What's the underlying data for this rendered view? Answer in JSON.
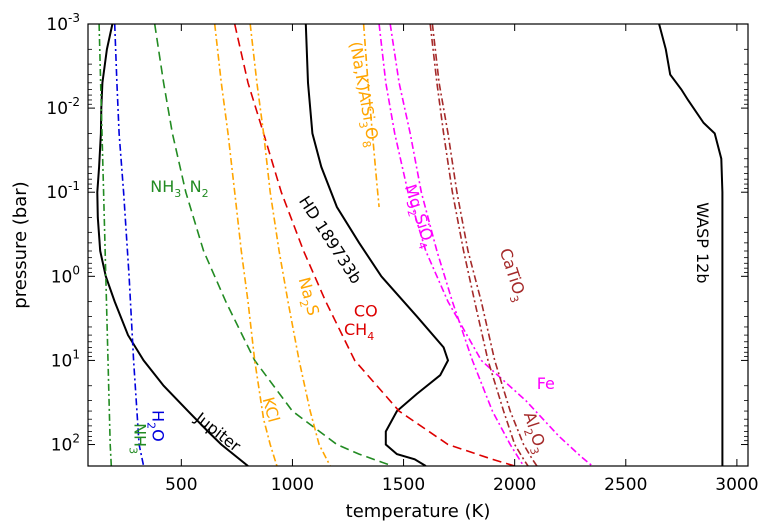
{
  "chart_data": {
    "type": "line",
    "title": "",
    "xlabel": "temperature (K)",
    "ylabel": "pressure (bar)",
    "xlim": [
      80,
      3050
    ],
    "ylim": [
      0.001,
      180
    ],
    "yscale": "log",
    "yaxis_inverted": true,
    "grid": false,
    "x_ticks": [
      {
        "value": 500,
        "label": "500"
      },
      {
        "value": 1000,
        "label": "1000"
      },
      {
        "value": 1500,
        "label": "1500"
      },
      {
        "value": 2000,
        "label": "2000"
      },
      {
        "value": 2500,
        "label": "2500"
      },
      {
        "value": 3000,
        "label": "3000"
      }
    ],
    "y_ticks": [
      {
        "value": 0.001,
        "base": "10",
        "exp": "-3"
      },
      {
        "value": 0.01,
        "base": "10",
        "exp": "-2"
      },
      {
        "value": 0.1,
        "base": "10",
        "exp": "-1"
      },
      {
        "value": 1,
        "base": "10",
        "exp": "0"
      },
      {
        "value": 10,
        "base": "10",
        "exp": "1"
      },
      {
        "value": 100,
        "base": "10",
        "exp": "2"
      }
    ],
    "series": [
      {
        "name": "Jupiter",
        "kind": "profile",
        "color": "#000000",
        "style": "solid",
        "points": [
          [
            190,
            0.001
          ],
          [
            165,
            0.002
          ],
          [
            145,
            0.005
          ],
          [
            140,
            0.01
          ],
          [
            138,
            0.02
          ],
          [
            130,
            0.05
          ],
          [
            122,
            0.1
          ],
          [
            124,
            0.2
          ],
          [
            135,
            0.5
          ],
          [
            160,
            1
          ],
          [
            200,
            2
          ],
          [
            260,
            5
          ],
          [
            330,
            10
          ],
          [
            420,
            20
          ],
          [
            530,
            40
          ],
          [
            620,
            70
          ],
          [
            680,
            100
          ],
          [
            800,
            180
          ]
        ]
      },
      {
        "name": "HD 189733b",
        "kind": "profile",
        "color": "#000000",
        "style": "solid",
        "points": [
          [
            1060,
            0.001
          ],
          [
            1070,
            0.005
          ],
          [
            1090,
            0.02
          ],
          [
            1130,
            0.05
          ],
          [
            1200,
            0.15
          ],
          [
            1300,
            0.4
          ],
          [
            1400,
            1
          ],
          [
            1560,
            3
          ],
          [
            1680,
            7
          ],
          [
            1700,
            10
          ],
          [
            1665,
            15
          ],
          [
            1560,
            25
          ],
          [
            1470,
            40
          ],
          [
            1420,
            70
          ],
          [
            1420,
            100
          ],
          [
            1470,
            130
          ],
          [
            1550,
            150
          ],
          [
            1600,
            180
          ]
        ]
      },
      {
        "name": "WASP 12b",
        "kind": "profile",
        "color": "#000000",
        "style": "solid",
        "points": [
          [
            2650,
            0.001
          ],
          [
            2680,
            0.002
          ],
          [
            2700,
            0.004
          ],
          [
            2750,
            0.006
          ],
          [
            2780,
            0.008
          ],
          [
            2850,
            0.015
          ],
          [
            2900,
            0.02
          ],
          [
            2930,
            0.04
          ],
          [
            2935,
            0.1
          ],
          [
            2935,
            1
          ],
          [
            2935,
            10
          ],
          [
            2935,
            180
          ]
        ]
      },
      {
        "name": "NH3",
        "kind": "condensation",
        "color": "#228b22",
        "style": "dashdot",
        "points": [
          [
            130,
            0.001
          ],
          [
            140,
            0.01
          ],
          [
            150,
            0.1
          ],
          [
            160,
            1
          ],
          [
            170,
            10
          ],
          [
            180,
            100
          ],
          [
            185,
            180
          ]
        ]
      },
      {
        "name": "H2O",
        "kind": "condensation",
        "color": "#0000dd",
        "style": "dashdot",
        "points": [
          [
            200,
            0.001
          ],
          [
            210,
            0.005
          ],
          [
            220,
            0.02
          ],
          [
            240,
            0.1
          ],
          [
            265,
            1
          ],
          [
            285,
            10
          ],
          [
            310,
            100
          ],
          [
            330,
            180
          ]
        ]
      },
      {
        "name": "NH3 N2",
        "kind": "chemistry",
        "color": "#228b22",
        "style": "dashed",
        "points": [
          [
            380,
            0.001
          ],
          [
            420,
            0.005
          ],
          [
            460,
            0.02
          ],
          [
            520,
            0.1
          ],
          [
            600,
            0.5
          ],
          [
            700,
            2
          ],
          [
            830,
            10
          ],
          [
            1000,
            40
          ],
          [
            1200,
            100
          ],
          [
            1300,
            130
          ],
          [
            1450,
            180
          ]
        ]
      },
      {
        "name": "CH4 CO",
        "kind": "chemistry",
        "color": "#dd0000",
        "style": "dashed",
        "points": [
          [
            740,
            0.001
          ],
          [
            800,
            0.005
          ],
          [
            870,
            0.02
          ],
          [
            950,
            0.1
          ],
          [
            1050,
            0.5
          ],
          [
            1150,
            2
          ],
          [
            1280,
            10
          ],
          [
            1480,
            40
          ],
          [
            1700,
            100
          ],
          [
            1900,
            150
          ],
          [
            2000,
            180
          ]
        ]
      },
      {
        "name": "KCl",
        "kind": "condensation",
        "color": "#ffa500",
        "style": "dashdot",
        "points": [
          [
            650,
            0.001
          ],
          [
            680,
            0.005
          ],
          [
            710,
            0.02
          ],
          [
            740,
            0.1
          ],
          [
            770,
            0.5
          ],
          [
            800,
            2
          ],
          [
            830,
            10
          ],
          [
            870,
            50
          ],
          [
            900,
            100
          ],
          [
            930,
            180
          ]
        ]
      },
      {
        "name": "Na2S",
        "kind": "condensation",
        "color": "#ffa500",
        "style": "dashdot",
        "points": [
          [
            810,
            0.001
          ],
          [
            840,
            0.005
          ],
          [
            870,
            0.02
          ],
          [
            900,
            0.1
          ],
          [
            940,
            0.5
          ],
          [
            980,
            2
          ],
          [
            1030,
            10
          ],
          [
            1080,
            40
          ],
          [
            1120,
            100
          ],
          [
            1170,
            180
          ]
        ]
      },
      {
        "name": "(Na,K)AlSi3O8",
        "kind": "condensation",
        "color": "#ffa500",
        "style": "dashdot",
        "points": [
          [
            1320,
            0.001
          ],
          [
            1340,
            0.005
          ],
          [
            1360,
            0.02
          ],
          [
            1380,
            0.08
          ],
          [
            1390,
            0.15
          ]
        ]
      },
      {
        "name": "Mg2SiO4",
        "kind": "condensation",
        "color": "#ff00ff",
        "style": "dashdot",
        "points": [
          [
            1440,
            0.001
          ],
          [
            1480,
            0.005
          ],
          [
            1530,
            0.02
          ],
          [
            1580,
            0.1
          ],
          [
            1650,
            0.5
          ],
          [
            1720,
            2
          ],
          [
            1810,
            10
          ],
          [
            1900,
            40
          ],
          [
            1980,
            100
          ],
          [
            2040,
            180
          ]
        ]
      },
      {
        "name": "Fe",
        "kind": "condensation",
        "color": "#ff00ff",
        "style": "dashdot",
        "points": [
          [
            1390,
            0.001
          ],
          [
            1420,
            0.005
          ],
          [
            1460,
            0.02
          ],
          [
            1520,
            0.1
          ],
          [
            1600,
            0.5
          ],
          [
            1700,
            2
          ],
          [
            1850,
            10
          ],
          [
            2050,
            30
          ],
          [
            2200,
            80
          ],
          [
            2300,
            140
          ],
          [
            2350,
            180
          ]
        ]
      },
      {
        "name": "CaTiO3",
        "kind": "condensation",
        "color": "#a52a2a",
        "style": "dashdot",
        "points": [
          [
            1620,
            0.001
          ],
          [
            1650,
            0.005
          ],
          [
            1680,
            0.02
          ],
          [
            1720,
            0.1
          ],
          [
            1770,
            0.5
          ],
          [
            1820,
            2
          ],
          [
            1880,
            10
          ],
          [
            1950,
            40
          ],
          [
            2000,
            100
          ],
          [
            2040,
            150
          ],
          [
            2060,
            180
          ]
        ]
      },
      {
        "name": "Al2O3",
        "kind": "condensation",
        "color": "#a52a2a",
        "style": "dashdot",
        "points": [
          [
            1630,
            0.001
          ],
          [
            1660,
            0.005
          ],
          [
            1700,
            0.02
          ],
          [
            1740,
            0.1
          ],
          [
            1790,
            0.5
          ],
          [
            1850,
            2
          ],
          [
            1910,
            10
          ],
          [
            1980,
            40
          ],
          [
            2040,
            100
          ],
          [
            2080,
            150
          ],
          [
            2100,
            180
          ]
        ]
      }
    ],
    "labels": [
      {
        "id": "jupiter",
        "text": "Jupiter",
        "color": "#000000",
        "x": 650,
        "y": 80,
        "rotate": 38
      },
      {
        "id": "hd",
        "text": "HD 189733b",
        "color": "#000000",
        "x": 1150,
        "y": 0.4,
        "rotate": 57
      },
      {
        "id": "wasp",
        "text": "WASP 12b",
        "color": "#000000",
        "x": 2820,
        "y": 0.4,
        "rotate": 90
      },
      {
        "id": "h2o",
        "text": "H",
        "sub": "2",
        "after": "O",
        "color": "#0000dd",
        "x": 370,
        "y": 60,
        "rotate": 90
      },
      {
        "id": "nh3-cond",
        "text": "NH",
        "sub": "3",
        "after": "",
        "color": "#228b22",
        "x": 290,
        "y": 85,
        "rotate": 90
      },
      {
        "id": "nh3-n2-a",
        "text": "NH",
        "sub": "3",
        "after": "",
        "color": "#228b22",
        "x": 430,
        "y": 0.1,
        "rotate": 0
      },
      {
        "id": "nh3-n2-b",
        "text": "N",
        "sub": "2",
        "after": "",
        "color": "#228b22",
        "x": 580,
        "y": 0.1,
        "rotate": 0
      },
      {
        "id": "kcl",
        "text": "KCl",
        "color": "#ffa500",
        "x": 880,
        "y": 40,
        "rotate": 75
      },
      {
        "id": "na2s",
        "text": "Na",
        "sub": "2",
        "after": "S",
        "color": "#ffa500",
        "x": 1050,
        "y": 1.8,
        "rotate": 75
      },
      {
        "id": "nakalsi",
        "text": "(Na,K)AlSi",
        "sub": "3",
        "after": "O",
        "sub2": "8",
        "color": "#ffa500",
        "x": 1300,
        "y": 0.007,
        "rotate": 80
      },
      {
        "id": "ch4",
        "text": "CH",
        "sub": "4",
        "after": "",
        "color": "#dd0000",
        "x": 1300,
        "y": 5,
        "rotate": 0
      },
      {
        "id": "co",
        "text": "CO",
        "color": "#dd0000",
        "x": 1330,
        "y": 3,
        "rotate": 0
      },
      {
        "id": "mg2sio4",
        "text": "Mg",
        "sub": "2",
        "after": "SiO",
        "sub2": "4",
        "color": "#ff00ff",
        "x": 1550,
        "y": 0.2,
        "rotate": 72
      },
      {
        "id": "fe",
        "text": "Fe",
        "color": "#ff00ff",
        "x": 2140,
        "y": 22,
        "rotate": 0
      },
      {
        "id": "catio3",
        "text": "CaTiO",
        "sub": "3",
        "after": "",
        "color": "#a52a2a",
        "x": 1970,
        "y": 1.0,
        "rotate": 72
      },
      {
        "id": "al2o3",
        "text": "Al",
        "sub": "2",
        "after": "O",
        "sub2": "3",
        "color": "#a52a2a",
        "x": 2070,
        "y": 75,
        "rotate": 72
      }
    ]
  }
}
